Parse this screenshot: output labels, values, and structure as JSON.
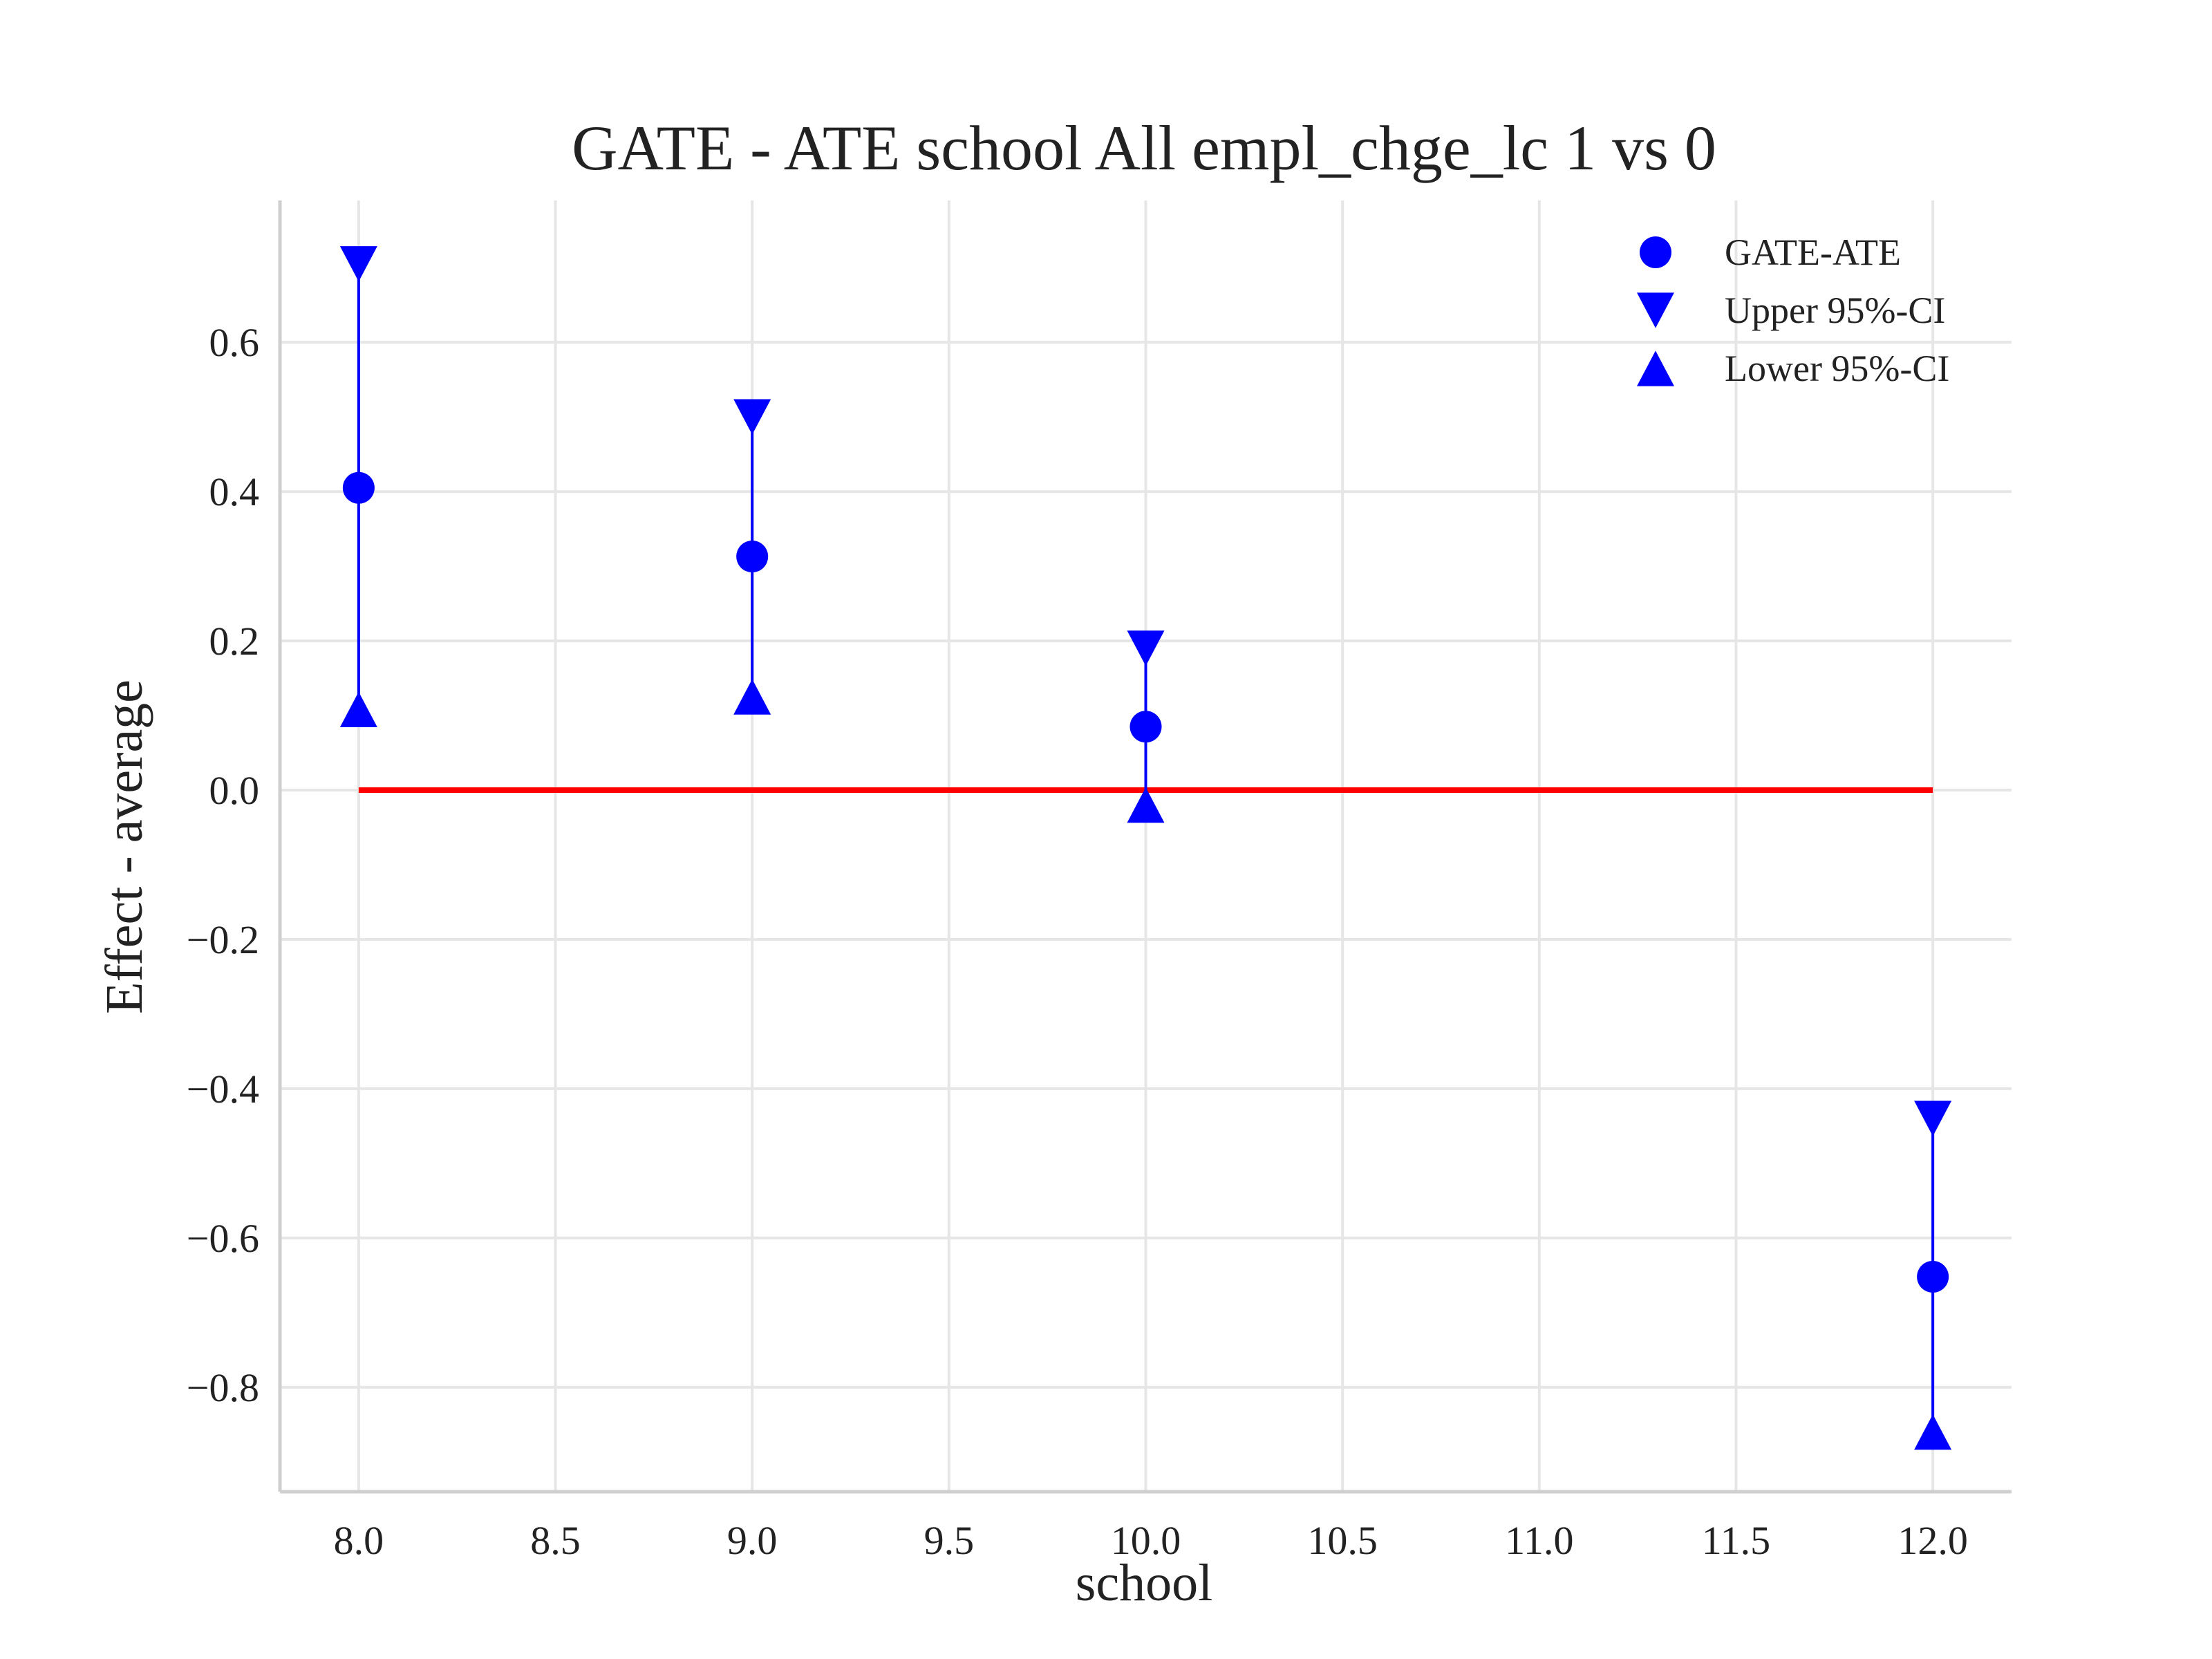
{
  "chart_data": {
    "type": "scatter",
    "title": "GATE - ATE school All empl_chge_lc  1 vs 0",
    "xlabel": "school",
    "ylabel": "Effect - average",
    "xlim": [
      7.8,
      12.2
    ],
    "ylim": [
      -0.94,
      0.79
    ],
    "xticks": [
      "8.0",
      "8.5",
      "9.0",
      "9.5",
      "10.0",
      "10.5",
      "11.0",
      "11.5",
      "12.0"
    ],
    "xtick_values": [
      8.0,
      8.5,
      9.0,
      9.5,
      10.0,
      10.5,
      11.0,
      11.5,
      12.0
    ],
    "yticks": [
      "0.6",
      "0.4",
      "0.2",
      "0.0",
      "−0.2",
      "−0.4",
      "−0.6",
      "−0.8"
    ],
    "ytick_values": [
      0.6,
      0.4,
      0.2,
      0.0,
      -0.2,
      -0.4,
      -0.6,
      -0.8
    ],
    "grid": true,
    "legend_position": "top-right",
    "x": [
      8,
      9,
      10,
      12
    ],
    "series": [
      {
        "name": "GATE-ATE",
        "marker": "circle",
        "color": "#0000ff",
        "values": [
          0.405,
          0.313,
          0.085,
          -0.652
        ]
      },
      {
        "name": "Upper 95%-CI",
        "marker": "triangle-down",
        "color": "#0000ff",
        "values": [
          0.705,
          0.5,
          0.19,
          -0.44
        ]
      },
      {
        "name": "Lower 95%-CI",
        "marker": "triangle-up",
        "color": "#0000ff",
        "values": [
          0.108,
          0.125,
          -0.02,
          -0.86
        ]
      }
    ],
    "reference_line": {
      "y": 0.0,
      "x_range": [
        8,
        12
      ],
      "color": "#ff0000"
    }
  }
}
